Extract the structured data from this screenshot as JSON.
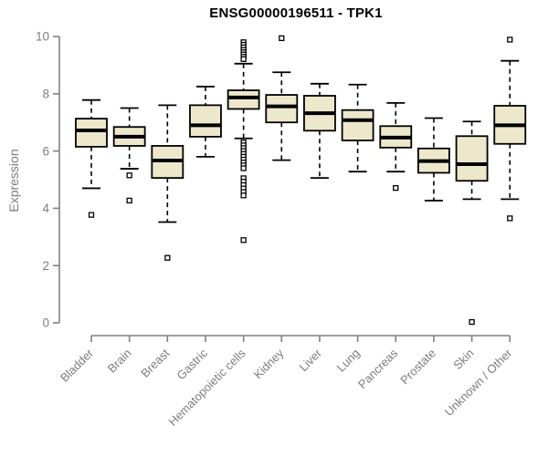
{
  "colors": {
    "box_fill": "#EDE8CC",
    "box_border": "#000000",
    "median_line": "#000000",
    "outlier_fill": "#ffffff",
    "axis_line": "#808080",
    "tick_label": "#7d7d7d",
    "title_color": "#000000",
    "background": "#ffffff"
  },
  "chart_data": {
    "type": "boxplot",
    "title": "ENSG00000196511 - TPK1",
    "xlabel": "",
    "ylabel": "Expression",
    "ylim": [
      0,
      10
    ],
    "yticks": [
      0,
      2,
      4,
      6,
      8,
      10
    ],
    "grid": false,
    "legend": false,
    "x_tick_rotation_deg": 45,
    "categories": [
      "Bladder",
      "Brain",
      "Breast",
      "Gastric",
      "Hematopoietic cells",
      "Kidney",
      "Liver",
      "Lung",
      "Pancreas",
      "Prostate",
      "Skin",
      "Unknown / Other"
    ],
    "series": [
      {
        "name": "Bladder",
        "whisker_low": 4.7,
        "q1": 6.15,
        "median": 6.72,
        "q3": 7.13,
        "whisker_high": 7.78,
        "outliers": [
          3.77
        ]
      },
      {
        "name": "Brain",
        "whisker_low": 5.38,
        "q1": 6.18,
        "median": 6.5,
        "q3": 6.84,
        "whisker_high": 7.5,
        "outliers": [
          5.15,
          4.27
        ]
      },
      {
        "name": "Breast",
        "whisker_low": 3.52,
        "q1": 5.06,
        "median": 5.67,
        "q3": 6.18,
        "whisker_high": 7.6,
        "outliers": [
          2.27
        ]
      },
      {
        "name": "Gastric",
        "whisker_low": 5.8,
        "q1": 6.5,
        "median": 6.9,
        "q3": 7.6,
        "whisker_high": 8.25,
        "outliers": []
      },
      {
        "name": "Hematopoietic cells",
        "whisker_low": 6.44,
        "q1": 7.47,
        "median": 7.87,
        "q3": 8.12,
        "whisker_high": 9.05,
        "outliers": [
          9.8,
          9.71,
          9.62,
          9.53,
          9.45,
          9.37,
          9.29,
          9.21,
          6.3,
          6.2,
          6.1,
          6.0,
          5.9,
          5.8,
          5.7,
          5.6,
          5.5,
          5.4,
          5.05,
          4.93,
          4.81,
          4.69,
          4.57,
          4.45,
          2.89
        ]
      },
      {
        "name": "Kidney",
        "whisker_low": 5.68,
        "q1": 7.0,
        "median": 7.56,
        "q3": 7.96,
        "whisker_high": 8.75,
        "outliers": [
          9.94
        ]
      },
      {
        "name": "Liver",
        "whisker_low": 5.06,
        "q1": 6.71,
        "median": 7.32,
        "q3": 7.93,
        "whisker_high": 8.35,
        "outliers": []
      },
      {
        "name": "Lung",
        "whisker_low": 5.28,
        "q1": 6.37,
        "median": 7.08,
        "q3": 7.43,
        "whisker_high": 8.32,
        "outliers": []
      },
      {
        "name": "Pancreas",
        "whisker_low": 5.28,
        "q1": 6.12,
        "median": 6.47,
        "q3": 6.87,
        "whisker_high": 7.68,
        "outliers": [
          4.71
        ]
      },
      {
        "name": "Prostate",
        "whisker_low": 4.27,
        "q1": 5.24,
        "median": 5.65,
        "q3": 6.09,
        "whisker_high": 7.15,
        "outliers": []
      },
      {
        "name": "Skin",
        "whisker_low": 4.32,
        "q1": 4.96,
        "median": 5.54,
        "q3": 6.52,
        "whisker_high": 7.03,
        "outliers": [
          0.03
        ]
      },
      {
        "name": "Unknown / Other",
        "whisker_low": 4.32,
        "q1": 6.25,
        "median": 6.9,
        "q3": 7.58,
        "whisker_high": 9.15,
        "outliers": [
          9.89,
          3.65
        ]
      }
    ]
  }
}
